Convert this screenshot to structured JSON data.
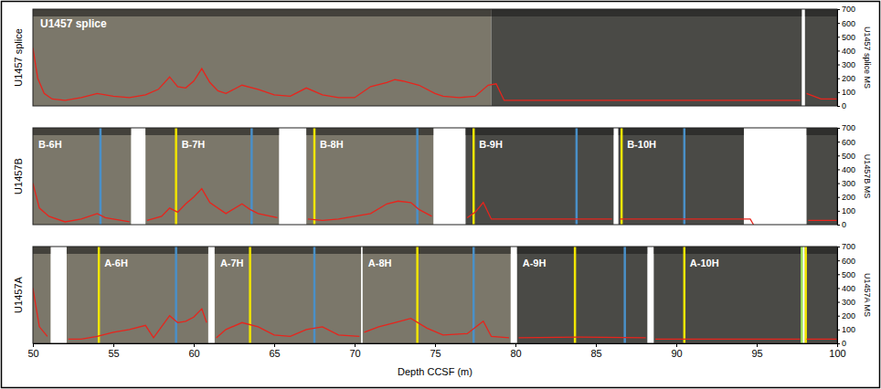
{
  "chart_data": [
    {
      "type": "line",
      "title": "U1457 splice",
      "annotation": "U1457 splice",
      "ylabel": "U1457 splice MS",
      "tick_labels": "y",
      "color": "#e8241c",
      "xlim": [
        50,
        100
      ],
      "ylim": [
        0,
        700
      ],
      "yticks": [
        0,
        100,
        200,
        300,
        400,
        500,
        600,
        700
      ],
      "x": [
        50,
        50.3,
        50.7,
        51.2,
        52,
        53,
        54,
        55,
        56,
        57,
        57.8,
        58.5,
        59,
        59.5,
        60,
        60.5,
        61,
        61.5,
        62,
        63,
        64,
        65,
        66,
        67,
        68,
        69,
        70,
        71,
        72,
        72.5,
        73,
        74,
        75,
        75.5,
        76.5,
        77.5,
        78.3,
        78.8,
        79.3,
        80,
        85,
        90,
        95,
        97.7,
        97.9,
        98.1,
        99,
        100
      ],
      "values": [
        420,
        200,
        90,
        50,
        40,
        60,
        90,
        70,
        60,
        80,
        120,
        210,
        140,
        130,
        180,
        270,
        170,
        110,
        90,
        150,
        120,
        80,
        70,
        130,
        80,
        60,
        60,
        140,
        170,
        190,
        180,
        150,
        90,
        70,
        60,
        70,
        150,
        160,
        40,
        40,
        40,
        40,
        40,
        40,
        null,
        90,
        50,
        50
      ],
      "cores": [
        {
          "start": 50,
          "end": 78.5,
          "color": "#7b776a"
        },
        {
          "start": 78.5,
          "end": 97.8,
          "color": "#4a4a46"
        },
        {
          "start": 98.0,
          "end": 100,
          "color": "#4a4a46"
        }
      ],
      "ties": []
    },
    {
      "type": "line",
      "title": "U1457B",
      "ylabel": "U1457B MS",
      "tick_labels": "y",
      "color": "#e8241c",
      "xlim": [
        50,
        100
      ],
      "ylim": [
        0,
        700
      ],
      "yticks": [
        0,
        100,
        200,
        300,
        400,
        500,
        600,
        700
      ],
      "x": [
        50,
        50.4,
        51,
        52,
        53,
        54,
        54.5,
        55,
        56,
        56.5,
        57.1,
        58,
        58.5,
        59,
        59.5,
        60,
        60.5,
        61,
        62,
        63,
        63.5,
        64,
        65.2,
        66,
        67.1,
        68,
        69,
        70,
        71,
        72,
        72.7,
        73.5,
        74,
        74.8,
        75.8,
        77,
        77.5,
        78,
        78.5,
        80,
        83,
        86,
        86.25,
        86.5,
        90,
        94.6,
        94.8,
        97,
        98.2,
        100
      ],
      "values": [
        300,
        120,
        60,
        20,
        40,
        80,
        50,
        40,
        20,
        null,
        30,
        60,
        120,
        90,
        150,
        200,
        260,
        160,
        80,
        150,
        110,
        80,
        50,
        null,
        40,
        30,
        40,
        60,
        80,
        150,
        170,
        160,
        110,
        60,
        null,
        50,
        90,
        160,
        40,
        40,
        40,
        40,
        null,
        40,
        40,
        40,
        0,
        null,
        30,
        30
      ],
      "cores": [
        {
          "name": "B-6H",
          "start": 50,
          "end": 56.1,
          "color": "#7b776a"
        },
        {
          "name": "B-7H",
          "start": 57.0,
          "end": 65.3,
          "color": "#7b776a"
        },
        {
          "name": "B-8H",
          "start": 67.0,
          "end": 74.9,
          "color": "#7b776a"
        },
        {
          "name": "B-9H",
          "start": 76.9,
          "end": 86.1,
          "color": "#4a4a46"
        },
        {
          "name": "B-10H",
          "start": 86.4,
          "end": 94.2,
          "color": "#4a4a46"
        },
        {
          "start": 98.1,
          "end": 100,
          "color": "#4a4a46"
        }
      ],
      "ties": [
        {
          "x": 54.2,
          "color": "#4a90c8"
        },
        {
          "x": 58.9,
          "color": "#f2e600"
        },
        {
          "x": 63.6,
          "color": "#4a90c8"
        },
        {
          "x": 67.5,
          "color": "#f2e600"
        },
        {
          "x": 73.9,
          "color": "#4a90c8"
        },
        {
          "x": 77.4,
          "color": "#f2e600"
        },
        {
          "x": 83.8,
          "color": "#4a90c8"
        },
        {
          "x": 86.6,
          "color": "#f2e600"
        },
        {
          "x": 90.5,
          "color": "#4a90c8"
        }
      ]
    },
    {
      "type": "line",
      "title": "U1457A",
      "ylabel": "U1457A MS",
      "xlabel": "Depth CCSF (m)",
      "color": "#e8241c",
      "xlim": [
        50,
        100
      ],
      "xticks": [
        50,
        55,
        60,
        65,
        70,
        75,
        80,
        85,
        90,
        95,
        100
      ],
      "ylim": [
        0,
        700
      ],
      "yticks": [
        0,
        100,
        200,
        300,
        400,
        500,
        600,
        700
      ],
      "x": [
        50,
        50.4,
        50.9,
        51.6,
        52.2,
        53,
        54,
        55,
        56,
        57,
        57.5,
        58.5,
        59,
        59.5,
        60,
        60.5,
        60.8,
        61.1,
        61.4,
        62,
        63,
        64,
        65,
        66,
        67,
        68,
        69,
        70.3,
        70.45,
        70.6,
        71.5,
        72.5,
        73.5,
        74.5,
        75.5,
        77,
        78,
        78.5,
        79.6,
        79.9,
        80.2,
        84,
        88.1,
        88.4,
        88.7,
        97.7,
        97.9,
        98.1,
        100
      ],
      "values": [
        400,
        120,
        50,
        null,
        30,
        30,
        50,
        80,
        100,
        130,
        40,
        200,
        150,
        160,
        190,
        250,
        150,
        null,
        40,
        100,
        150,
        120,
        60,
        50,
        100,
        120,
        60,
        50,
        null,
        80,
        120,
        150,
        180,
        110,
        60,
        70,
        160,
        50,
        40,
        null,
        40,
        45,
        40,
        null,
        30,
        30,
        null,
        30,
        30
      ],
      "cores": [
        {
          "start": 50,
          "end": 51.1,
          "color": "#7b776a"
        },
        {
          "name": "A-6H",
          "start": 52.1,
          "end": 60.9,
          "color": "#7b776a"
        },
        {
          "name": "A-7H",
          "start": 61.3,
          "end": 70.4,
          "color": "#7b776a"
        },
        {
          "name": "A-8H",
          "start": 70.5,
          "end": 79.7,
          "color": "#7b776a"
        },
        {
          "name": "A-9H",
          "start": 80.1,
          "end": 88.2,
          "color": "#4a4a46"
        },
        {
          "name": "A-10H",
          "start": 88.6,
          "end": 97.8,
          "color": "#4a4a46"
        },
        {
          "start": 98.0,
          "end": 100,
          "color": "#4a4a46"
        }
      ],
      "ties": [
        {
          "x": 54.1,
          "color": "#f2e600"
        },
        {
          "x": 58.9,
          "color": "#4a90c8"
        },
        {
          "x": 63.5,
          "color": "#f2e600"
        },
        {
          "x": 67.5,
          "color": "#4a90c8"
        },
        {
          "x": 73.9,
          "color": "#f2e600"
        },
        {
          "x": 77.4,
          "color": "#4a90c8"
        },
        {
          "x": 83.7,
          "color": "#f2e600"
        },
        {
          "x": 86.8,
          "color": "#4a90c8"
        },
        {
          "x": 90.5,
          "color": "#f2e600"
        },
        {
          "x": 97.8,
          "color": "#9be05a"
        },
        {
          "x": 98.05,
          "color": "#f2e600"
        }
      ]
    }
  ]
}
